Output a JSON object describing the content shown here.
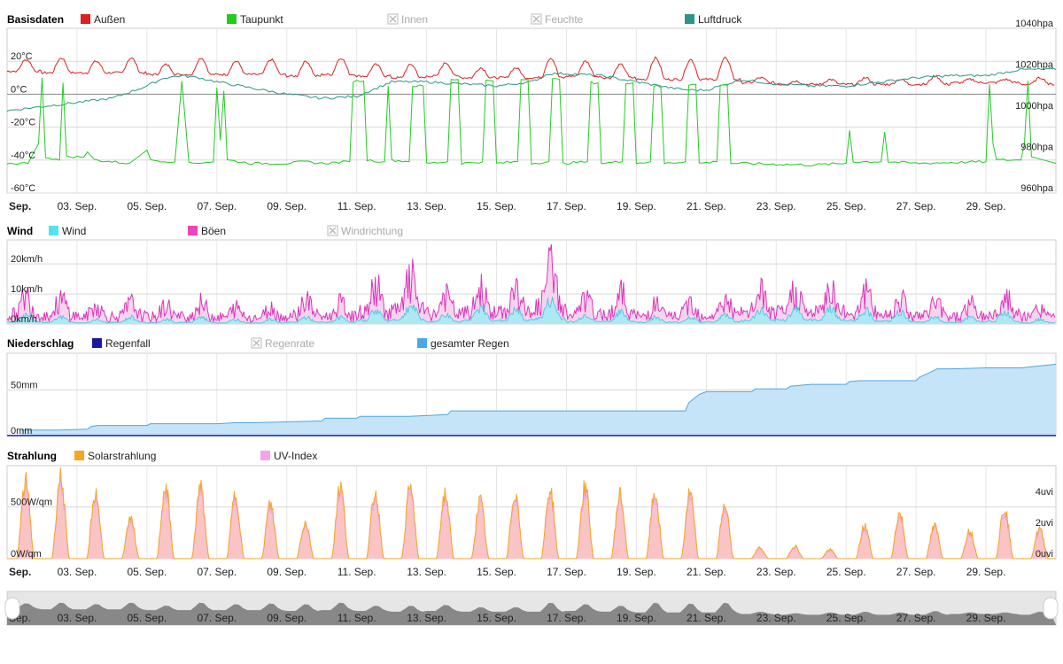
{
  "chart_data": [
    {
      "id": "basis",
      "type": "line",
      "title": "Basisdaten",
      "legend": [
        {
          "label": "Außen",
          "color": "#dd2020",
          "enabled": true
        },
        {
          "label": "Taupunkt",
          "color": "#22cc22",
          "enabled": true
        },
        {
          "label": "Innen",
          "color": "#cccccc",
          "enabled": false
        },
        {
          "label": "Feuchte",
          "color": "#cccccc",
          "enabled": false
        },
        {
          "label": "Luftdruck",
          "color": "#2a9688",
          "enabled": true
        }
      ],
      "y_left": {
        "ticks": [
          20,
          0,
          -20,
          -40,
          -60
        ],
        "labels": [
          "20°C",
          "0°C",
          "-20°C",
          "-40°C",
          "-60°C"
        ],
        "range": [
          -60,
          40
        ]
      },
      "y_right": {
        "ticks": [
          1040,
          1020,
          1000,
          980,
          960
        ],
        "labels": [
          "1040hpa",
          "1020hpa",
          "1000hpa",
          "980hpa",
          "960hpa"
        ],
        "range": [
          960,
          1040
        ]
      },
      "x_range_days": [
        1,
        31
      ],
      "series": [
        {
          "name": "Außen",
          "color": "#dd2020",
          "axis": "left",
          "daily_max": [
            21,
            22,
            20,
            22,
            18,
            22,
            20,
            21,
            20,
            22,
            18,
            18,
            19,
            16,
            16,
            22,
            20,
            18,
            22,
            21,
            22,
            10,
            8,
            9,
            10,
            9,
            11,
            9,
            9,
            10
          ],
          "daily_min": [
            14,
            13,
            13,
            13,
            12,
            12,
            12,
            12,
            11,
            12,
            11,
            10,
            11,
            10,
            10,
            10,
            11,
            10,
            9,
            9,
            9,
            7,
            6,
            6,
            6,
            6,
            6,
            7,
            7,
            6
          ]
        },
        {
          "name": "Taupunkt",
          "color": "#22cc22",
          "axis": "left",
          "segments": [
            [
              1,
              -42
            ],
            [
              1.6,
              -42
            ],
            [
              1.9,
              -30
            ],
            [
              2.0,
              10
            ],
            [
              2.1,
              -38
            ],
            [
              2.5,
              -40
            ],
            [
              2.6,
              7
            ],
            [
              2.7,
              -38
            ],
            [
              3.2,
              -38
            ],
            [
              3.3,
              -35
            ],
            [
              3.5,
              -40
            ],
            [
              4.5,
              -42
            ],
            [
              5.0,
              -34
            ],
            [
              5.1,
              -40
            ],
            [
              5.8,
              -41
            ],
            [
              6.0,
              8
            ],
            [
              6.2,
              -42
            ],
            [
              6.9,
              -41
            ],
            [
              7.0,
              4
            ],
            [
              7.1,
              -28
            ],
            [
              7.2,
              2
            ],
            [
              7.3,
              -40
            ],
            [
              8,
              -42
            ],
            [
              9,
              -42
            ],
            [
              9.5,
              -41
            ],
            [
              10,
              -42
            ],
            [
              10.8,
              -41
            ],
            [
              10.9,
              8
            ],
            [
              11.2,
              8
            ],
            [
              11.3,
              -40
            ],
            [
              11.8,
              -41
            ],
            [
              11.9,
              5
            ],
            [
              12.0,
              -40
            ],
            [
              12.5,
              -41
            ],
            [
              12.6,
              5
            ],
            [
              12.9,
              5
            ],
            [
              13.0,
              -42
            ],
            [
              13.6,
              -41
            ],
            [
              13.7,
              9
            ],
            [
              13.9,
              9
            ],
            [
              14.0,
              -42
            ],
            [
              14.6,
              -41
            ],
            [
              14.7,
              8
            ],
            [
              14.9,
              8
            ],
            [
              15.0,
              -42
            ],
            [
              15.6,
              -41
            ],
            [
              15.7,
              9
            ],
            [
              15.9,
              9
            ],
            [
              16.0,
              -42
            ],
            [
              16.5,
              -41
            ],
            [
              16.6,
              9
            ],
            [
              16.8,
              9
            ],
            [
              16.9,
              -42
            ],
            [
              17.6,
              -41
            ],
            [
              17.7,
              7
            ],
            [
              17.9,
              7
            ],
            [
              18.0,
              -42
            ],
            [
              18.6,
              -41
            ],
            [
              18.7,
              7
            ],
            [
              18.9,
              7
            ],
            [
              19.0,
              -42
            ],
            [
              19.4,
              -41
            ],
            [
              19.5,
              5
            ],
            [
              19.7,
              5
            ],
            [
              19.8,
              -42
            ],
            [
              20.4,
              -41
            ],
            [
              20.5,
              6
            ],
            [
              20.7,
              6
            ],
            [
              20.8,
              -42
            ],
            [
              21.3,
              -41
            ],
            [
              21.4,
              6
            ],
            [
              21.6,
              6
            ],
            [
              21.7,
              -42
            ],
            [
              22,
              -42
            ],
            [
              24,
              -43
            ],
            [
              25.0,
              -42
            ],
            [
              25.1,
              -22
            ],
            [
              25.2,
              -41
            ],
            [
              26.0,
              -41
            ],
            [
              26.1,
              -23
            ],
            [
              26.2,
              -41
            ],
            [
              27,
              -42
            ],
            [
              29.0,
              -41
            ],
            [
              29.1,
              6
            ],
            [
              29.2,
              -30
            ],
            [
              29.3,
              -40
            ],
            [
              30.0,
              -40
            ],
            [
              30.1,
              -30
            ],
            [
              30.2,
              8
            ],
            [
              30.3,
              -38
            ],
            [
              31,
              -42
            ]
          ]
        },
        {
          "name": "Luftdruck",
          "color": "#2a9688",
          "axis": "right",
          "points": [
            [
              1,
              1000
            ],
            [
              1.5,
              1001
            ],
            [
              2,
              1002
            ],
            [
              3,
              1004
            ],
            [
              4,
              1006
            ],
            [
              5,
              1012
            ],
            [
              5.5,
              1016
            ],
            [
              6,
              1017
            ],
            [
              6.5,
              1016
            ],
            [
              7,
              1014
            ],
            [
              8,
              1011
            ],
            [
              9,
              1008
            ],
            [
              10,
              1006
            ],
            [
              11,
              1007
            ],
            [
              12,
              1014
            ],
            [
              13,
              1014
            ],
            [
              14,
              1013
            ],
            [
              15,
              1012
            ],
            [
              16,
              1014
            ],
            [
              16.5,
              1018
            ],
            [
              17,
              1018
            ],
            [
              18,
              1017
            ],
            [
              19,
              1014
            ],
            [
              20,
              1011
            ],
            [
              20.5,
              1010
            ],
            [
              21,
              1010
            ],
            [
              22,
              1015
            ],
            [
              23,
              1013
            ],
            [
              24,
              1012
            ],
            [
              25,
              1012
            ],
            [
              26,
              1014
            ],
            [
              27,
              1016
            ],
            [
              28,
              1017
            ],
            [
              29,
              1017
            ],
            [
              30,
              1020
            ],
            [
              31,
              1020
            ]
          ]
        }
      ]
    },
    {
      "id": "wind",
      "type": "area",
      "title": "Wind",
      "legend": [
        {
          "label": "Wind",
          "color": "#55e2ee",
          "enabled": true
        },
        {
          "label": "Böen",
          "color": "#ee44bb",
          "enabled": true
        },
        {
          "label": "Windrichtung",
          "color": "#cccccc",
          "enabled": false
        }
      ],
      "y_left": {
        "ticks": [
          20,
          10,
          0
        ],
        "labels": [
          "20km/h",
          "10km/h",
          "0km/h"
        ],
        "range": [
          0,
          28
        ]
      },
      "x_range_days": [
        1,
        31
      ],
      "gust_daily_max": [
        12,
        10,
        7,
        8,
        7,
        8,
        6,
        6,
        10,
        8,
        16,
        20,
        12,
        15,
        15,
        26,
        10,
        13,
        8,
        9,
        10,
        14,
        15,
        16,
        14,
        12,
        9,
        8,
        11,
        6
      ],
      "wind_daily_max": [
        4,
        3,
        2,
        3,
        2,
        3,
        2,
        2,
        3,
        3,
        6,
        8,
        4,
        7,
        6,
        10,
        4,
        5,
        3,
        3,
        4,
        6,
        7,
        7,
        6,
        5,
        3,
        3,
        5,
        2
      ]
    },
    {
      "id": "regen",
      "type": "area",
      "title": "Niederschlag",
      "legend": [
        {
          "label": "Regenfall",
          "color": "#1a1aa0",
          "enabled": true
        },
        {
          "label": "Regenrate",
          "color": "#cccccc",
          "enabled": false
        },
        {
          "label": "gesamter Regen",
          "color": "#4aa8e8",
          "enabled": true
        }
      ],
      "y_left": {
        "ticks": [
          50,
          0
        ],
        "labels": [
          "50mm",
          "0mm"
        ],
        "range": [
          0,
          90
        ]
      },
      "x_range_days": [
        1,
        31
      ],
      "cumulative": [
        [
          1,
          0
        ],
        [
          1.4,
          6
        ],
        [
          2.5,
          6
        ],
        [
          3.3,
          7
        ],
        [
          3.4,
          10
        ],
        [
          3.6,
          11
        ],
        [
          5.0,
          11
        ],
        [
          5.1,
          13
        ],
        [
          7.0,
          13
        ],
        [
          7.5,
          14
        ],
        [
          8,
          14
        ],
        [
          10.0,
          16
        ],
        [
          10.1,
          19
        ],
        [
          11.0,
          19
        ],
        [
          11.1,
          21
        ],
        [
          12.5,
          21
        ],
        [
          13.6,
          23
        ],
        [
          13.7,
          27
        ],
        [
          15.0,
          27
        ],
        [
          20.4,
          27
        ],
        [
          20.5,
          36
        ],
        [
          20.8,
          45
        ],
        [
          21.0,
          48
        ],
        [
          22.3,
          48
        ],
        [
          22.4,
          51
        ],
        [
          23.3,
          51
        ],
        [
          23.4,
          54
        ],
        [
          24,
          56
        ],
        [
          25.0,
          56
        ],
        [
          25.1,
          59
        ],
        [
          25.4,
          60
        ],
        [
          27.0,
          60
        ],
        [
          27.1,
          64
        ],
        [
          27.4,
          69
        ],
        [
          27.6,
          73
        ],
        [
          28.0,
          73
        ],
        [
          29.0,
          74
        ],
        [
          30.0,
          74
        ],
        [
          31,
          78
        ]
      ]
    },
    {
      "id": "strahlung",
      "type": "area",
      "title": "Strahlung",
      "legend": [
        {
          "label": "Solarstrahlung",
          "color": "#f5a623",
          "enabled": true
        },
        {
          "label": "UV-Index",
          "color": "#f3a3ea",
          "enabled": true
        }
      ],
      "y_left": {
        "ticks": [
          500,
          0
        ],
        "labels": [
          "500W/qm",
          "0W/qm"
        ],
        "range": [
          0,
          900
        ]
      },
      "y_right": {
        "ticks": [
          4,
          2,
          0
        ],
        "labels": [
          "4uvi",
          "2uvi",
          "0uvi"
        ],
        "range": [
          0,
          6
        ]
      },
      "x_range_days": [
        1,
        31
      ],
      "solar_daily_max": [
        850,
        900,
        720,
        420,
        790,
        780,
        700,
        600,
        400,
        800,
        730,
        780,
        720,
        640,
        730,
        760,
        790,
        710,
        720,
        720,
        600,
        120,
        140,
        100,
        360,
        500,
        360,
        310,
        560,
        330
      ]
    }
  ],
  "x_axis": {
    "first_label": "Sep.",
    "labels": [
      "03. Sep.",
      "05. Sep.",
      "07. Sep.",
      "09. Sep.",
      "11. Sep.",
      "13. Sep.",
      "15. Sep.",
      "17. Sep.",
      "19. Sep.",
      "21. Sep.",
      "23. Sep.",
      "25. Sep.",
      "27. Sep.",
      "29. Sep."
    ],
    "label_days": [
      3,
      5,
      7,
      9,
      11,
      13,
      15,
      17,
      19,
      21,
      23,
      25,
      27,
      29
    ]
  },
  "navigator": {
    "first_label": "Sep.",
    "labels": [
      "03. Sep.",
      "05. Sep.",
      "07. Sep.",
      "09. Sep.",
      "11. Sep.",
      "13. Sep.",
      "15. Sep.",
      "17. Sep.",
      "19. Sep.",
      "21. Sep.",
      "23. Sep.",
      "25. Sep.",
      "27. Sep.",
      "29. Sep."
    ]
  }
}
